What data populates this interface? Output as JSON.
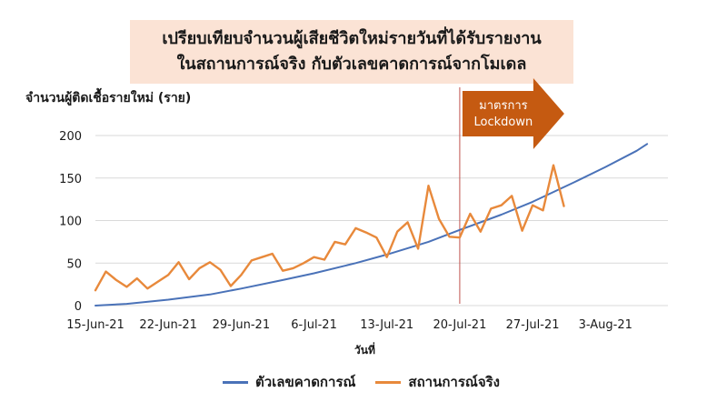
{
  "chart_data": {
    "type": "line",
    "title_line1": "เปรียบเทียบจำนวนผู้เสียชีวิตใหม่รายวันที่ได้รับรายงาน",
    "title_line2": "ในสถานการณ์จริง กับตัวเลขคาดการณ์จากโมเดล",
    "ylabel": "จำนวนผู้ติดเชื้อรายใหม่ (ราย)",
    "xlabel": "วันที่",
    "ylim": [
      0,
      200
    ],
    "yticks": [
      0,
      50,
      100,
      150,
      200
    ],
    "x_start": "15-Jun-21",
    "x_end": "9-Aug-21",
    "xticks": [
      "15-Jun-21",
      "22-Jun-21",
      "29-Jun-21",
      "6-Jul-21",
      "13-Jul-21",
      "20-Jul-21",
      "27-Jul-21",
      "3-Aug-21"
    ],
    "annotation": {
      "date": "20-Jul-21",
      "line1": "มาตรการ",
      "line2": "Lockdown"
    },
    "series": [
      {
        "name": "ตัวเลขคาดการณ์",
        "color": "#4a72b8",
        "points": [
          [
            "15-Jun-21",
            0
          ],
          [
            "18-Jun-21",
            2
          ],
          [
            "22-Jun-21",
            7
          ],
          [
            "26-Jun-21",
            13
          ],
          [
            "29-Jun-21",
            20
          ],
          [
            "3-Jul-21",
            30
          ],
          [
            "6-Jul-21",
            38
          ],
          [
            "10-Jul-21",
            50
          ],
          [
            "13-Jul-21",
            60
          ],
          [
            "17-Jul-21",
            75
          ],
          [
            "20-Jul-21",
            89
          ],
          [
            "24-Jul-21",
            107
          ],
          [
            "27-Jul-21",
            122
          ],
          [
            "31-Jul-21",
            145
          ],
          [
            "3-Aug-21",
            163
          ],
          [
            "6-Aug-21",
            182
          ],
          [
            "7-Aug-21",
            190
          ]
        ]
      },
      {
        "name": "สถานการณ์จริง",
        "color": "#e8893b",
        "points": [
          [
            "15-Jun-21",
            18
          ],
          [
            "16-Jun-21",
            40
          ],
          [
            "17-Jun-21",
            30
          ],
          [
            "18-Jun-21",
            22
          ],
          [
            "19-Jun-21",
            32
          ],
          [
            "20-Jun-21",
            20
          ],
          [
            "21-Jun-21",
            28
          ],
          [
            "22-Jun-21",
            36
          ],
          [
            "23-Jun-21",
            51
          ],
          [
            "24-Jun-21",
            31
          ],
          [
            "25-Jun-21",
            44
          ],
          [
            "26-Jun-21",
            51
          ],
          [
            "27-Jun-21",
            42
          ],
          [
            "28-Jun-21",
            23
          ],
          [
            "29-Jun-21",
            36
          ],
          [
            "30-Jun-21",
            53
          ],
          [
            "1-Jul-21",
            57
          ],
          [
            "2-Jul-21",
            61
          ],
          [
            "3-Jul-21",
            41
          ],
          [
            "4-Jul-21",
            44
          ],
          [
            "5-Jul-21",
            50
          ],
          [
            "6-Jul-21",
            57
          ],
          [
            "7-Jul-21",
            54
          ],
          [
            "8-Jul-21",
            75
          ],
          [
            "9-Jul-21",
            72
          ],
          [
            "10-Jul-21",
            91
          ],
          [
            "11-Jul-21",
            86
          ],
          [
            "12-Jul-21",
            80
          ],
          [
            "13-Jul-21",
            57
          ],
          [
            "14-Jul-21",
            87
          ],
          [
            "15-Jul-21",
            98
          ],
          [
            "16-Jul-21",
            67
          ],
          [
            "17-Jul-21",
            141
          ],
          [
            "18-Jul-21",
            102
          ],
          [
            "19-Jul-21",
            81
          ],
          [
            "20-Jul-21",
            80
          ],
          [
            "21-Jul-21",
            108
          ],
          [
            "22-Jul-21",
            87
          ],
          [
            "23-Jul-21",
            114
          ],
          [
            "24-Jul-21",
            118
          ],
          [
            "25-Jul-21",
            129
          ],
          [
            "26-Jul-21",
            88
          ],
          [
            "27-Jul-21",
            118
          ],
          [
            "28-Jul-21",
            112
          ],
          [
            "29-Jul-21",
            165
          ],
          [
            "30-Jul-21",
            117
          ]
        ]
      }
    ],
    "legend_position": "bottom"
  }
}
